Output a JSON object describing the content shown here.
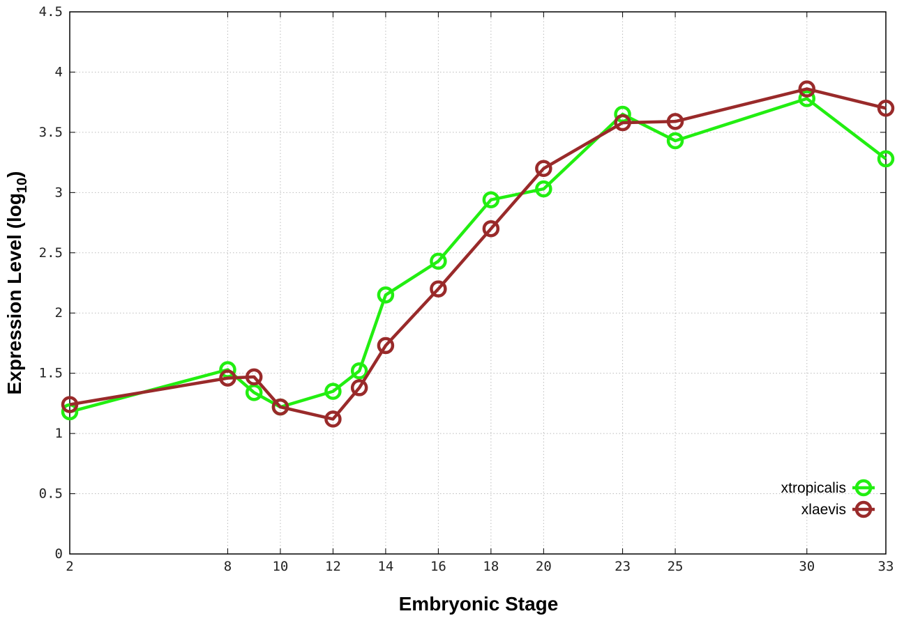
{
  "chart_data": {
    "type": "line",
    "xlabel": "Embryonic Stage",
    "ylabel_main": "Expression Level (log",
    "ylabel_sub": "10",
    "ylabel_close": ")",
    "xlim": [
      2,
      33
    ],
    "ylim": [
      0,
      4.5
    ],
    "x_ticks": [
      2,
      8,
      10,
      12,
      14,
      16,
      18,
      20,
      23,
      25,
      30,
      33
    ],
    "y_ticks": [
      0,
      0.5,
      1,
      1.5,
      2,
      2.5,
      3,
      3.5,
      4,
      4.5
    ],
    "y_tick_labels": [
      "0",
      "0.5",
      "1",
      "1.5",
      "2",
      "2.5",
      "3",
      "3.5",
      "4",
      "4.5"
    ],
    "grid": true,
    "legend_position": "bottom-right",
    "x": [
      2,
      8,
      9,
      10,
      12,
      13,
      14,
      16,
      18,
      20,
      23,
      25,
      30,
      33
    ],
    "series": [
      {
        "name": "xtropicalis",
        "color": "#22ee11",
        "values": [
          1.18,
          1.53,
          1.34,
          1.22,
          1.35,
          1.52,
          2.15,
          2.43,
          2.94,
          3.03,
          3.65,
          3.43,
          3.78,
          3.28
        ]
      },
      {
        "name": "xlaevis",
        "color": "#992a2a",
        "values": [
          1.24,
          1.46,
          1.47,
          1.22,
          1.12,
          1.38,
          1.73,
          2.2,
          2.7,
          3.2,
          3.58,
          3.59,
          3.86,
          3.7
        ]
      }
    ]
  }
}
